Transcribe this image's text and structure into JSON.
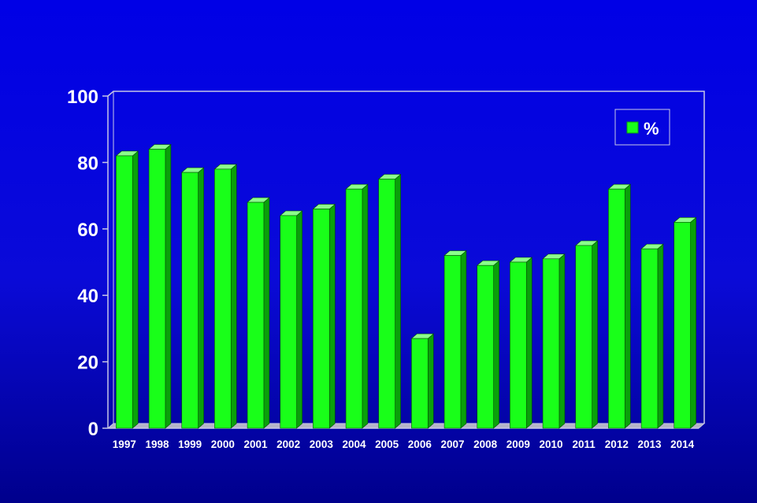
{
  "colors": {
    "background_top": "#0000e6",
    "background_bottom": "#00008c",
    "bar_front": "#19ff19",
    "bar_top": "#8cff8c",
    "bar_side": "#0aa00a",
    "axis_lines": "#c8c8e6"
  },
  "chart_data": {
    "type": "bar",
    "style": "3d-columns",
    "title": "",
    "xlabel": "",
    "ylabel": "",
    "ylim": [
      0,
      100
    ],
    "y_ticks": [
      "0",
      "20",
      "40",
      "60",
      "80",
      "100"
    ],
    "categories": [
      "1997",
      "1998",
      "1999",
      "2000",
      "2001",
      "2002",
      "2003",
      "2004",
      "2005",
      "2006",
      "2007",
      "2008",
      "2009",
      "2010",
      "2011",
      "2012",
      "2013",
      "2014"
    ],
    "series": [
      {
        "name": "%",
        "values": [
          82,
          84,
          77,
          78,
          68,
          64,
          66,
          72,
          75,
          27,
          52,
          49,
          50,
          51,
          55,
          72,
          54,
          62
        ]
      }
    ],
    "legend": {
      "position": "top-right",
      "entries": [
        "%"
      ]
    },
    "grid": false
  }
}
